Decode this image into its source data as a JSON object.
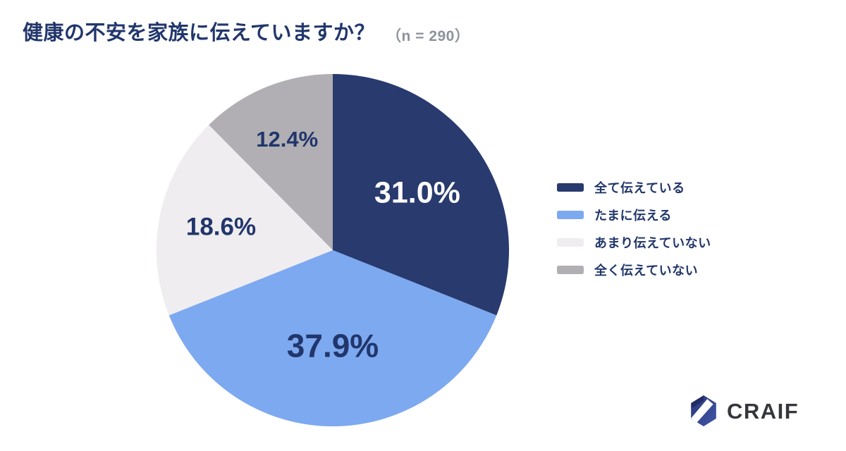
{
  "header": {
    "title": "健康の不安を家族に伝えていますか？",
    "sample_label": "（n = 290）"
  },
  "chart_data": {
    "type": "pie",
    "title": "健康の不安を家族に伝えていますか？",
    "sample_size": 290,
    "start_angle_deg": 0,
    "direction": "clockwise",
    "legend_position": "right",
    "background": "#FFFFFF",
    "slices": [
      {
        "label": "全て伝えている",
        "value": 31.0,
        "display": "31.0%",
        "color": "#283A6E",
        "label_color": "#FFFFFF"
      },
      {
        "label": "たまに伝える",
        "value": 37.9,
        "display": "37.9%",
        "color": "#7DA9F0",
        "label_color": "#21366B"
      },
      {
        "label": "あまり伝えていない",
        "value": 18.6,
        "display": "18.6%",
        "color": "#F0EDF0",
        "label_color": "#21366B"
      },
      {
        "label": "全く伝えていない",
        "value": 12.4,
        "display": "12.4%",
        "color": "#B1AFB3",
        "label_color": "#21366B"
      }
    ]
  },
  "branding": {
    "logo_text": "CRAIF",
    "logo_text_color": "#35373C",
    "logo_hex_dark": "#2A3577",
    "logo_hex_light": "#4156A8",
    "logo_stripe_color": "#FFFFFF"
  },
  "colors": {
    "title_text": "#21366B",
    "sample_text": "#8D929B",
    "legend_text": "#21366B"
  }
}
